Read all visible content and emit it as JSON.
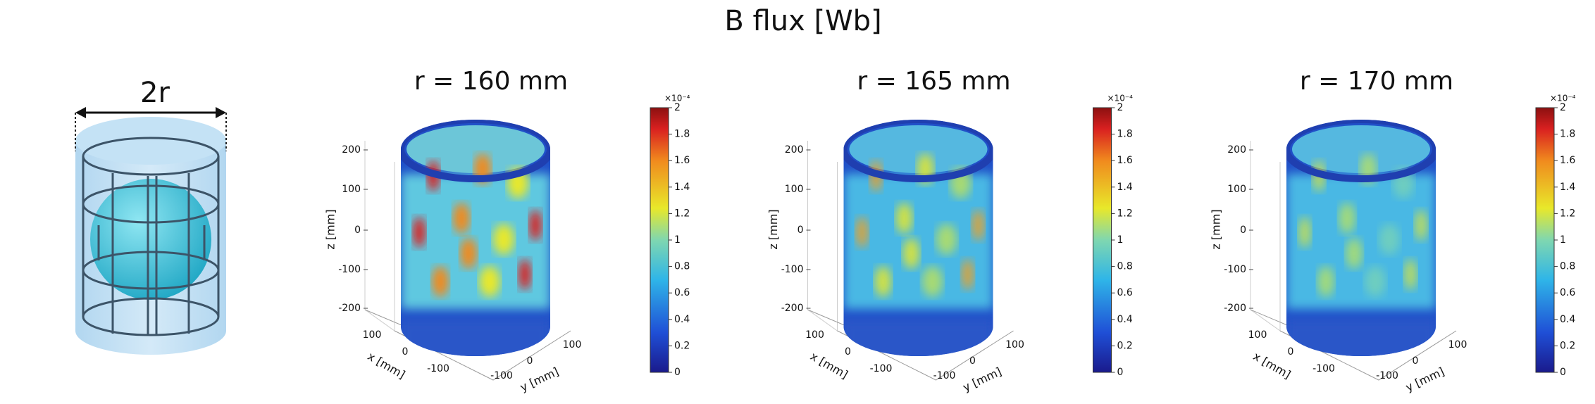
{
  "title": "B flux [Wb]",
  "schematic": {
    "label": "2r"
  },
  "panels": [
    {
      "title": "r = 160 mm",
      "z_label": "z [mm]",
      "x_label": "x [mm]",
      "y_label": "y [mm]",
      "z_ticks": [
        200,
        100,
        0,
        -100,
        -200
      ],
      "x_ticks": [
        100,
        0,
        -100
      ],
      "y_ticks": [
        -100,
        0,
        100
      ],
      "colorbar": {
        "exponent": "×10⁻⁴",
        "ticks": [
          0,
          0.2,
          0.4,
          0.6,
          0.8,
          1,
          1.2,
          1.4,
          1.6,
          1.8,
          2
        ]
      }
    },
    {
      "title": "r = 165 mm",
      "z_label": "z [mm]",
      "x_label": "x [mm]",
      "y_label": "y [mm]",
      "z_ticks": [
        200,
        100,
        0,
        -100,
        -200
      ],
      "x_ticks": [
        100,
        0,
        -100
      ],
      "y_ticks": [
        -100,
        0,
        100
      ],
      "colorbar": {
        "exponent": "×10⁻⁴",
        "ticks": [
          0,
          0.2,
          0.4,
          0.6,
          0.8,
          1,
          1.2,
          1.4,
          1.6,
          1.8,
          2
        ]
      }
    },
    {
      "title": "r = 170 mm",
      "z_label": "z [mm]",
      "x_label": "x [mm]",
      "y_label": "y [mm]",
      "z_ticks": [
        200,
        100,
        0,
        -100,
        -200
      ],
      "x_ticks": [
        100,
        0,
        -100
      ],
      "y_ticks": [
        -100,
        0,
        100
      ],
      "colorbar": {
        "exponent": "×10⁻⁴",
        "ticks": [
          0,
          0.2,
          0.4,
          0.6,
          0.8,
          1,
          1.2,
          1.4,
          1.6,
          1.8,
          2
        ]
      }
    }
  ]
}
